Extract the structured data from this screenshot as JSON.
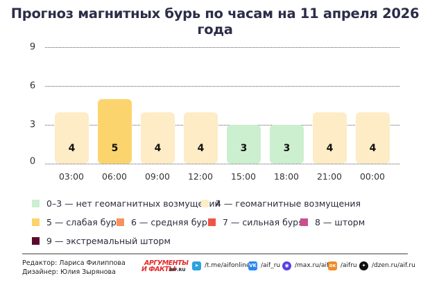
{
  "title": "Прогноз магнитных бурь по часам на 11 апреля 2026 года",
  "chart_data": {
    "type": "bar",
    "title": "Прогноз магнитных бурь по часам на 11 апреля 2026 года",
    "categories": [
      "03:00",
      "06:00",
      "09:00",
      "12:00",
      "15:00",
      "18:00",
      "21:00",
      "00:00"
    ],
    "values": [
      4,
      5,
      4,
      4,
      3,
      3,
      4,
      4
    ],
    "bar_colors": [
      "#fdecc6",
      "#fbd46e",
      "#fdecc6",
      "#fdecc6",
      "#ccefcf",
      "#ccefcf",
      "#fdecc6",
      "#fdecc6"
    ],
    "xlabel": "",
    "ylabel": "",
    "ylim": [
      0,
      9
    ],
    "yticks": [
      0,
      3,
      6,
      9
    ],
    "grid": true,
    "legend_position": "bottom",
    "data_labels": true
  },
  "legend": [
    {
      "label": "0–3 — нет геомагнитных возмущений",
      "color": "#ccefcf"
    },
    {
      "label": "4 — геомагнитные возмущения",
      "color": "#fdecc6"
    },
    {
      "label": "5 — слабая буря",
      "color": "#fbd46e"
    },
    {
      "label": "6 — средняя буря",
      "color": "#f7935a"
    },
    {
      "label": "7 — сильная буря",
      "color": "#ee5548"
    },
    {
      "label": "8 — шторм",
      "color": "#cc4e91"
    },
    {
      "label": "9 — экстремальный шторм",
      "color": "#5a0a2e"
    }
  ],
  "footer": {
    "editor": "Редактор: Лариса Филиппова",
    "designer": "Дизайнер: Юлия Зырянова",
    "logo_line1": "АРГУМЕНТЫ",
    "logo_line2": "И ФАКТЫ",
    "logo_site": "AIF.RU",
    "socials": [
      {
        "icon": "telegram-icon",
        "label": "/t.me/aifonline",
        "color": "#2aa3e0",
        "glyph": "➤"
      },
      {
        "icon": "vk-icon",
        "label": "/aif_ru",
        "color": "#2787f5",
        "glyph": "VK"
      },
      {
        "icon": "max-icon",
        "label": "/max.ru/aif",
        "color": "#5b3fe0",
        "glyph": "◉"
      },
      {
        "icon": "odnoklassniki-icon",
        "label": "/aifru",
        "color": "#f28c28",
        "glyph": "ок"
      },
      {
        "icon": "dzen-icon",
        "label": "/dzen.ru/aif.ru",
        "color": "#111111",
        "glyph": "✦"
      }
    ]
  }
}
